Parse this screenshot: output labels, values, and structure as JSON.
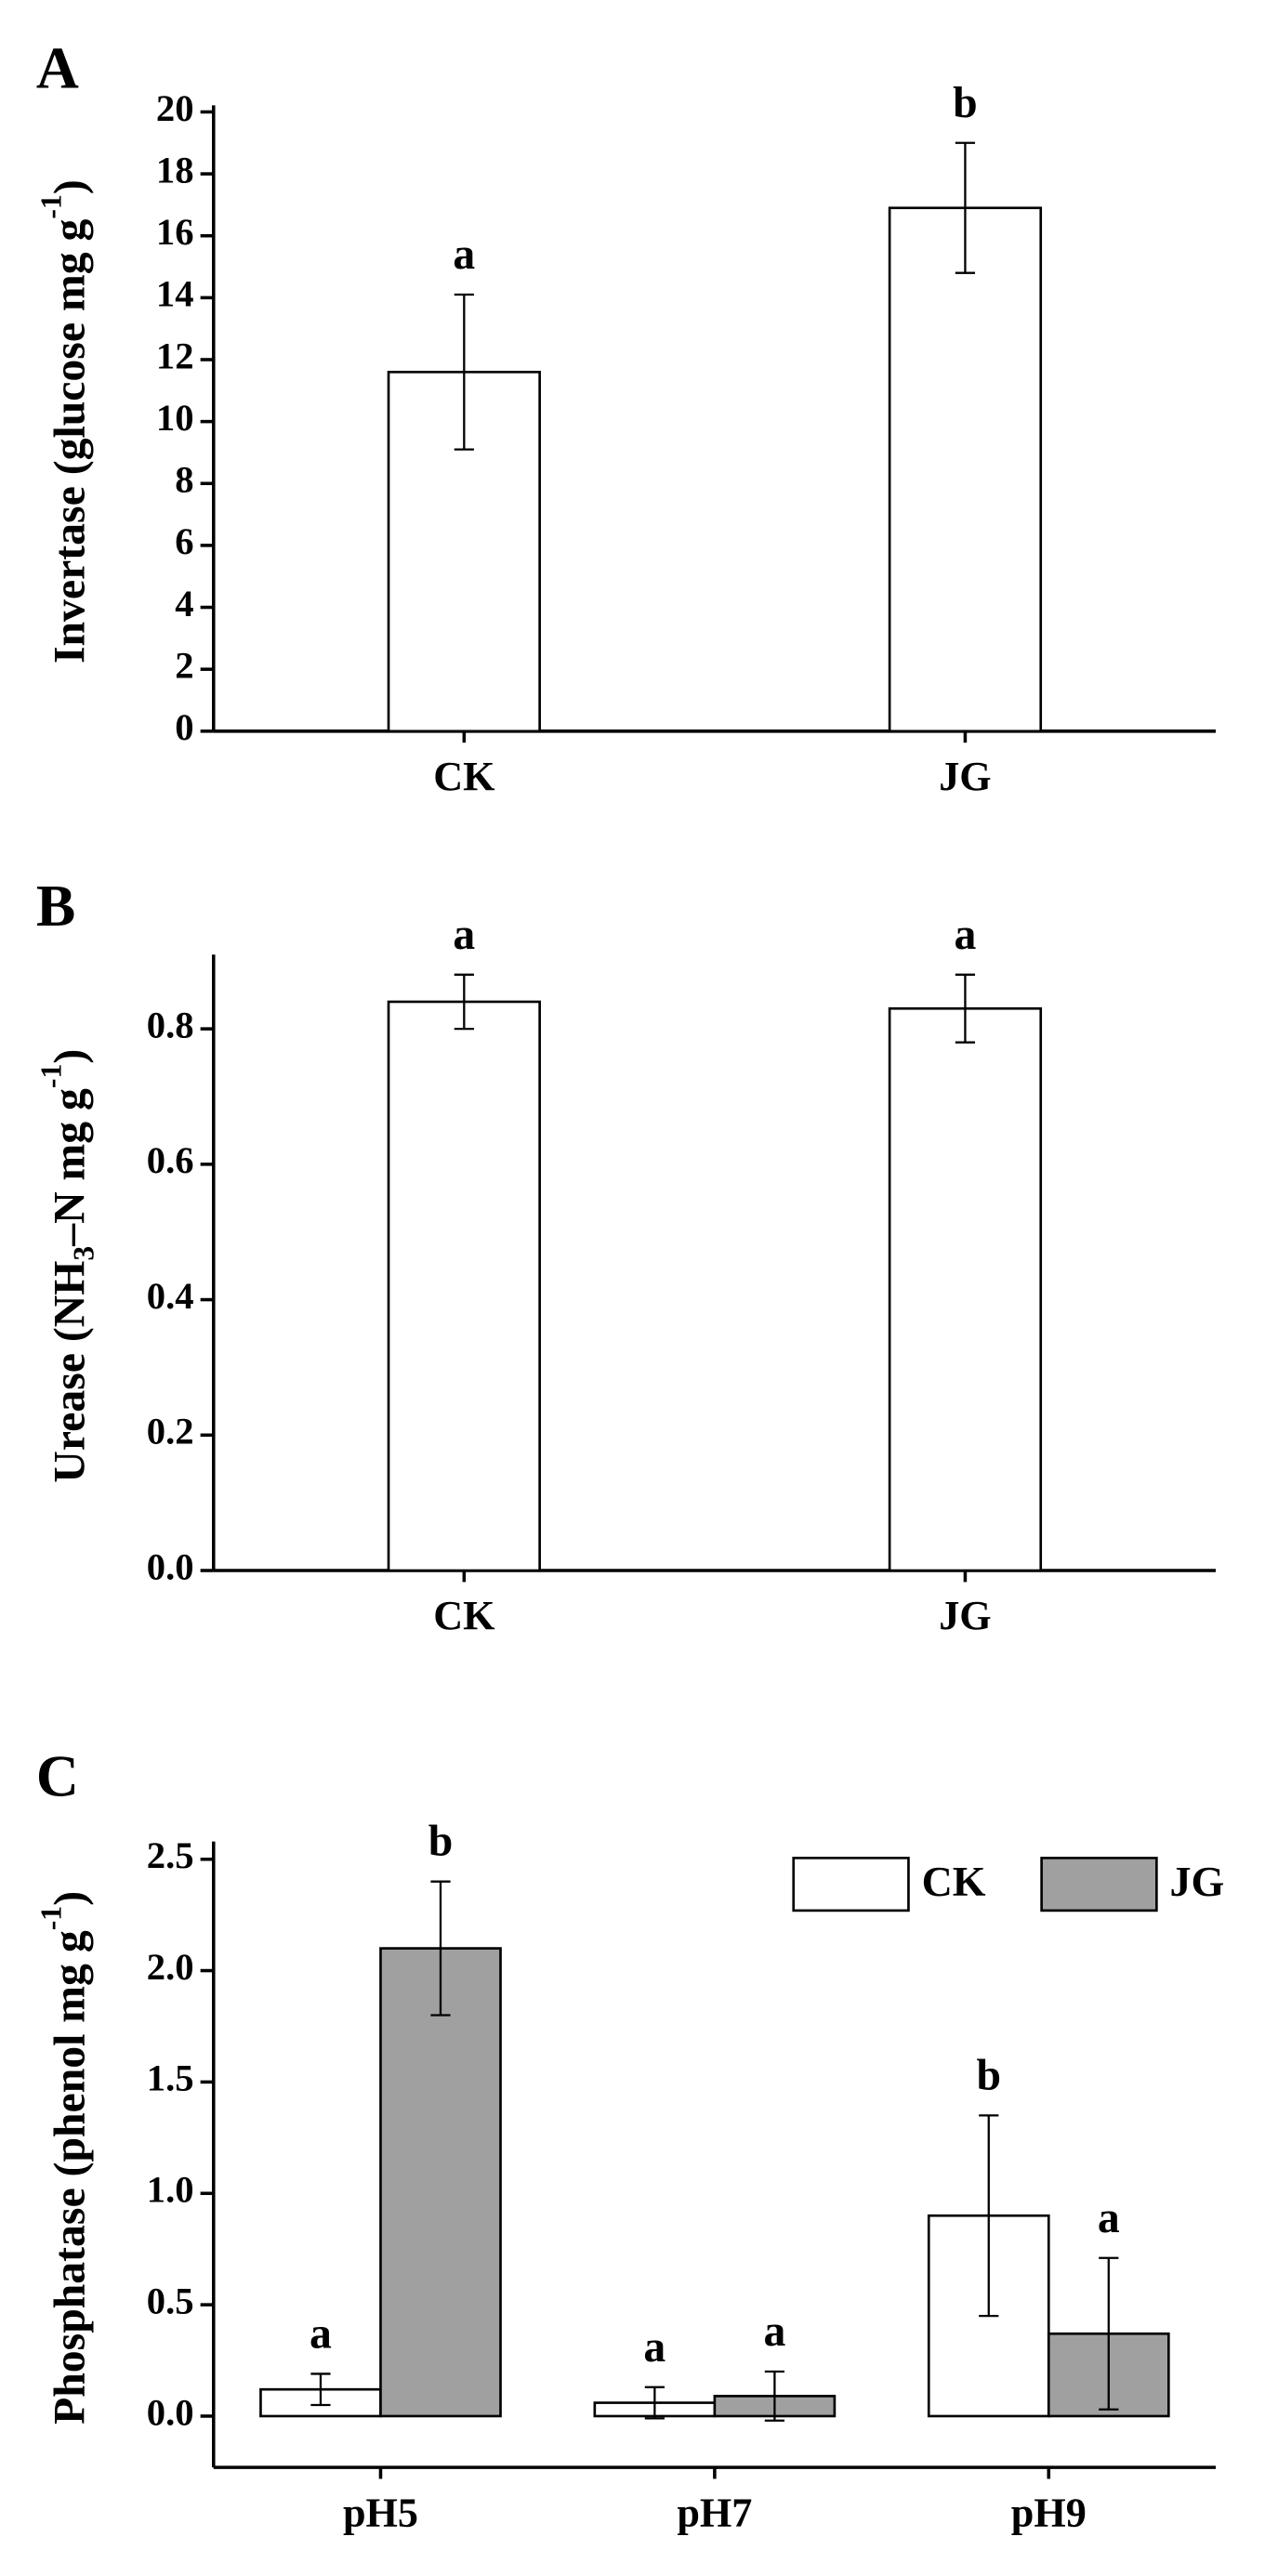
{
  "chart_data": [
    {
      "type": "bar",
      "panel": "A",
      "y_label": "Invertase  (glucose mg g",
      "y_label_sup": "-1",
      "y_label_end": ")",
      "categories": [
        "CK",
        "JG"
      ],
      "values": [
        11.6,
        16.9
      ],
      "errors": [
        2.5,
        2.1
      ],
      "letters": [
        "a",
        "b"
      ],
      "color": "#ffffff",
      "ylim": [
        0,
        20
      ],
      "yticks": [
        0,
        2,
        4,
        6,
        8,
        10,
        12,
        14,
        16,
        18,
        20
      ]
    },
    {
      "type": "bar",
      "panel": "B",
      "y_label": "Urease  (NH",
      "y_label_sub": "3",
      "y_label_mid": "–N mg g",
      "y_label_sup": "-1",
      "y_label_end": ")",
      "categories": [
        "CK",
        "JG"
      ],
      "values": [
        0.84,
        0.83
      ],
      "errors": [
        0.04,
        0.05
      ],
      "letters": [
        "a",
        "a"
      ],
      "color": "#ffffff",
      "ylim": [
        0,
        0.9
      ],
      "yticks": [
        {
          "value": 0,
          "label": "0.0"
        },
        0.2,
        0.4,
        0.6,
        0.8
      ]
    },
    {
      "type": "bar",
      "panel": "C",
      "y_label": "Phosphatase  (phenol mg g",
      "y_label_sup": "-1",
      "y_label_end": ")",
      "categories": [
        "pH5",
        "pH7",
        "pH9"
      ],
      "series": [
        {
          "name": "CK",
          "color": "#ffffff",
          "values": [
            0.12,
            0.06,
            0.9
          ],
          "errors": [
            0.07,
            0.07,
            0.45
          ],
          "letters": [
            "a",
            "a",
            "b"
          ]
        },
        {
          "name": "JG",
          "color": "#a0a0a0",
          "values": [
            2.1,
            0.09,
            0.37
          ],
          "errors": [
            0.3,
            0.11,
            0.34
          ],
          "letters": [
            "b",
            "a",
            "a"
          ]
        }
      ],
      "legend": "top-right",
      "ylim": [
        -0.23,
        2.55
      ],
      "yticks": [
        {
          "value": 0,
          "label": "0.0"
        },
        0.5,
        {
          "value": 1,
          "label": "1.0"
        },
        1.5,
        {
          "value": 2,
          "label": "2.0"
        },
        2.5
      ]
    }
  ]
}
